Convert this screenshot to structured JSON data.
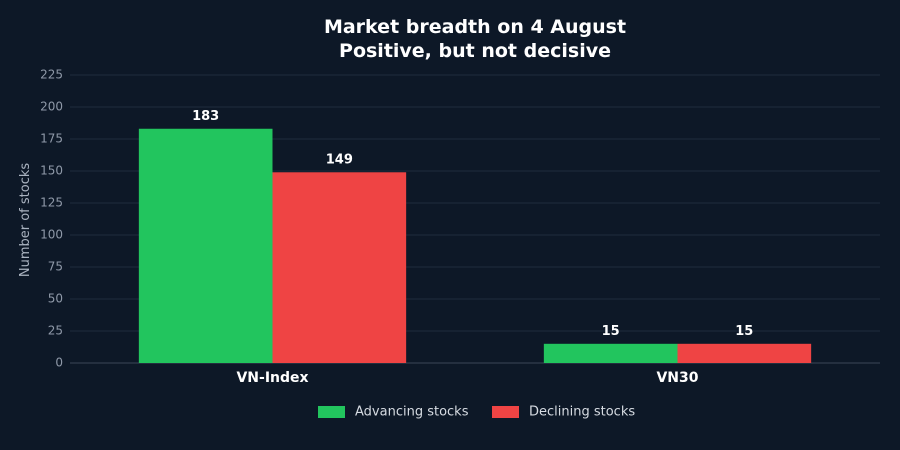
{
  "chart_data": {
    "type": "bar",
    "title": [
      "Market breadth on 4 August",
      "Positive, but not decisive"
    ],
    "categories": [
      "VN-Index",
      "VN30"
    ],
    "series": [
      {
        "name": "Advancing stocks",
        "values": [
          183,
          15
        ],
        "color": "#22c55e"
      },
      {
        "name": "Declining stocks",
        "values": [
          149,
          15
        ],
        "color": "#ef4444"
      }
    ],
    "ylabel": "Number of stocks",
    "ylim": [
      0,
      225
    ],
    "yticks": [
      0,
      25,
      50,
      75,
      100,
      125,
      150,
      175,
      200,
      225
    ],
    "grid": true,
    "legend_position": "bottom-center"
  }
}
